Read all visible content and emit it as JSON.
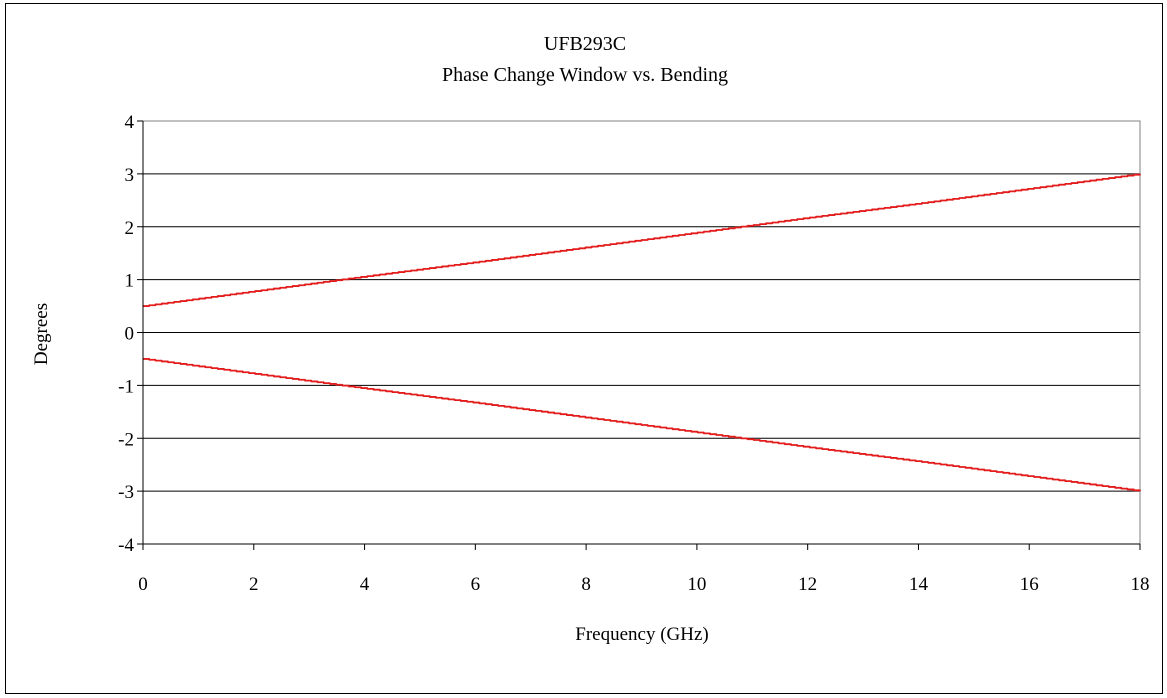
{
  "chart_data": {
    "type": "line",
    "title": "UFB293C",
    "subtitle": "Phase Change Window vs. Bending",
    "xlabel": "Frequency (GHz)",
    "ylabel": "Degrees",
    "xlim": [
      0,
      18
    ],
    "ylim": [
      -4,
      4
    ],
    "xticks": [
      "0",
      "2",
      "4",
      "6",
      "8",
      "10",
      "12",
      "14",
      "16",
      "18"
    ],
    "yticks": [
      "4",
      "3",
      "2",
      "1",
      "0",
      "-1",
      "-2",
      "-3",
      "-4"
    ],
    "grid": "horizontal",
    "legend": "none",
    "line_color": "#e31b1b",
    "series": [
      {
        "x": [
          0,
          2,
          4,
          6,
          8,
          10,
          12,
          14,
          16,
          18
        ],
        "values": [
          0.5,
          0.78,
          1.06,
          1.33,
          1.61,
          1.89,
          2.17,
          2.44,
          2.72,
          3.0
        ]
      },
      {
        "x": [
          0,
          2,
          4,
          6,
          8,
          10,
          12,
          14,
          16,
          18
        ],
        "values": [
          -0.5,
          -0.78,
          -1.06,
          -1.33,
          -1.61,
          -1.89,
          -2.17,
          -2.44,
          -2.72,
          -3.0
        ]
      }
    ]
  }
}
